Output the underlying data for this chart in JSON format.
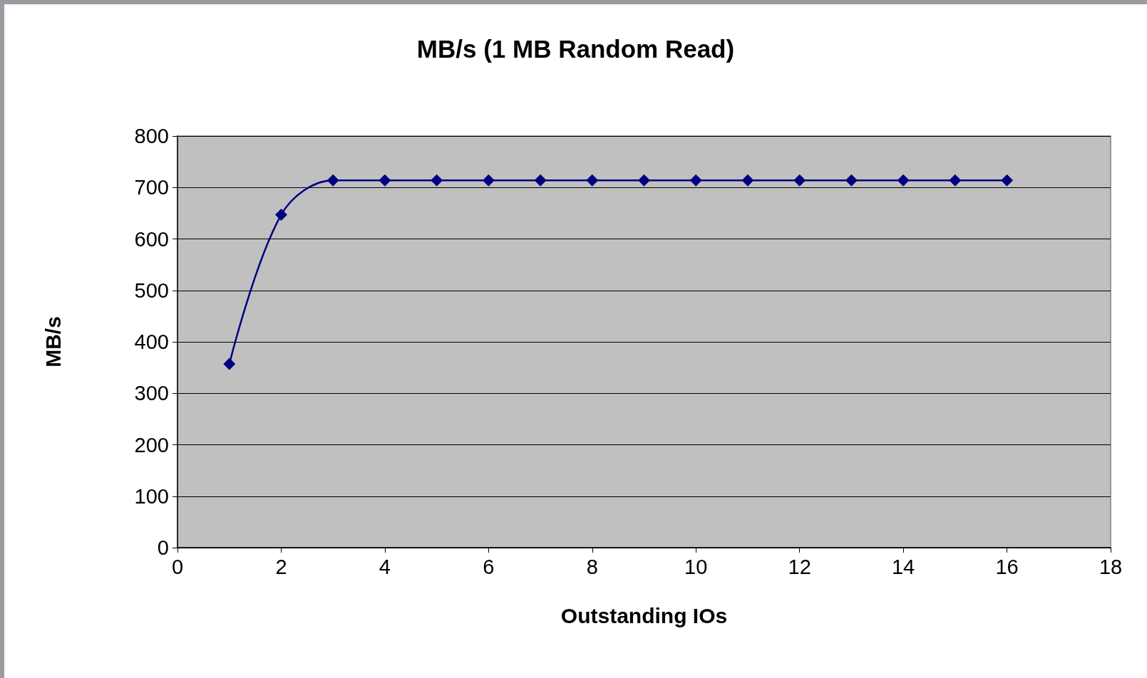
{
  "chart_data": {
    "type": "line",
    "title": "MB/s (1 MB Random Read)",
    "xlabel": "Outstanding IOs",
    "ylabel": "MB/s",
    "x": [
      1,
      2,
      3,
      4,
      5,
      6,
      7,
      8,
      9,
      10,
      11,
      12,
      13,
      14,
      15,
      16
    ],
    "series": [
      {
        "color": "#000080",
        "values": [
          357,
          647,
          714,
          714,
          714,
          714,
          714,
          714,
          714,
          714,
          714,
          714,
          714,
          714,
          714,
          714
        ]
      }
    ],
    "xlim": [
      0,
      18
    ],
    "xticks": [
      0,
      2,
      4,
      6,
      8,
      10,
      12,
      14,
      16,
      18
    ],
    "ylim": [
      0,
      800
    ],
    "yticks": [
      0,
      100,
      200,
      300,
      400,
      500,
      600,
      700,
      800
    ],
    "grid": "y",
    "marker": "diamond",
    "line_style": "solid"
  }
}
